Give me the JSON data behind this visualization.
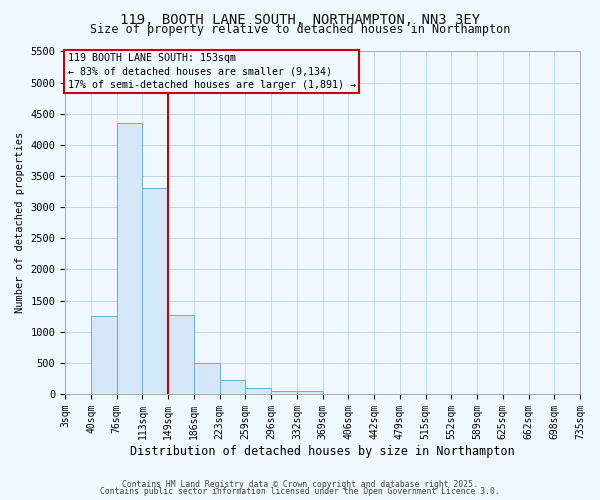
{
  "title_line1": "119, BOOTH LANE SOUTH, NORTHAMPTON, NN3 3EY",
  "title_line2": "Size of property relative to detached houses in Northampton",
  "xlabel": "Distribution of detached houses by size in Northampton",
  "ylabel": "Number of detached properties",
  "bin_labels": [
    "3sqm",
    "40sqm",
    "76sqm",
    "113sqm",
    "149sqm",
    "186sqm",
    "223sqm",
    "259sqm",
    "296sqm",
    "332sqm",
    "369sqm",
    "406sqm",
    "442sqm",
    "479sqm",
    "515sqm",
    "552sqm",
    "589sqm",
    "625sqm",
    "662sqm",
    "698sqm",
    "735sqm"
  ],
  "bar_values": [
    0,
    1250,
    4350,
    3300,
    1270,
    500,
    220,
    90,
    50,
    40,
    0,
    0,
    0,
    0,
    0,
    0,
    0,
    0,
    0,
    0
  ],
  "bar_color": "#d4e8f8",
  "bar_edge_color": "#6baed6",
  "vline_color": "#cc0000",
  "vline_bin_index": 4,
  "ylim_max": 5500,
  "yticks": [
    0,
    500,
    1000,
    1500,
    2000,
    2500,
    3000,
    3500,
    4000,
    4500,
    5000,
    5500
  ],
  "annotation_text": "119 BOOTH LANE SOUTH: 153sqm\n← 83% of detached houses are smaller (9,134)\n17% of semi-detached houses are larger (1,891) →",
  "annotation_box_color": "#cc0000",
  "footer_line1": "Contains HM Land Registry data © Crown copyright and database right 2025.",
  "footer_line2": "Contains public sector information licensed under the Open Government Licence 3.0.",
  "bg_color": "#f0f8ff",
  "grid_color": "#b8d4e8"
}
